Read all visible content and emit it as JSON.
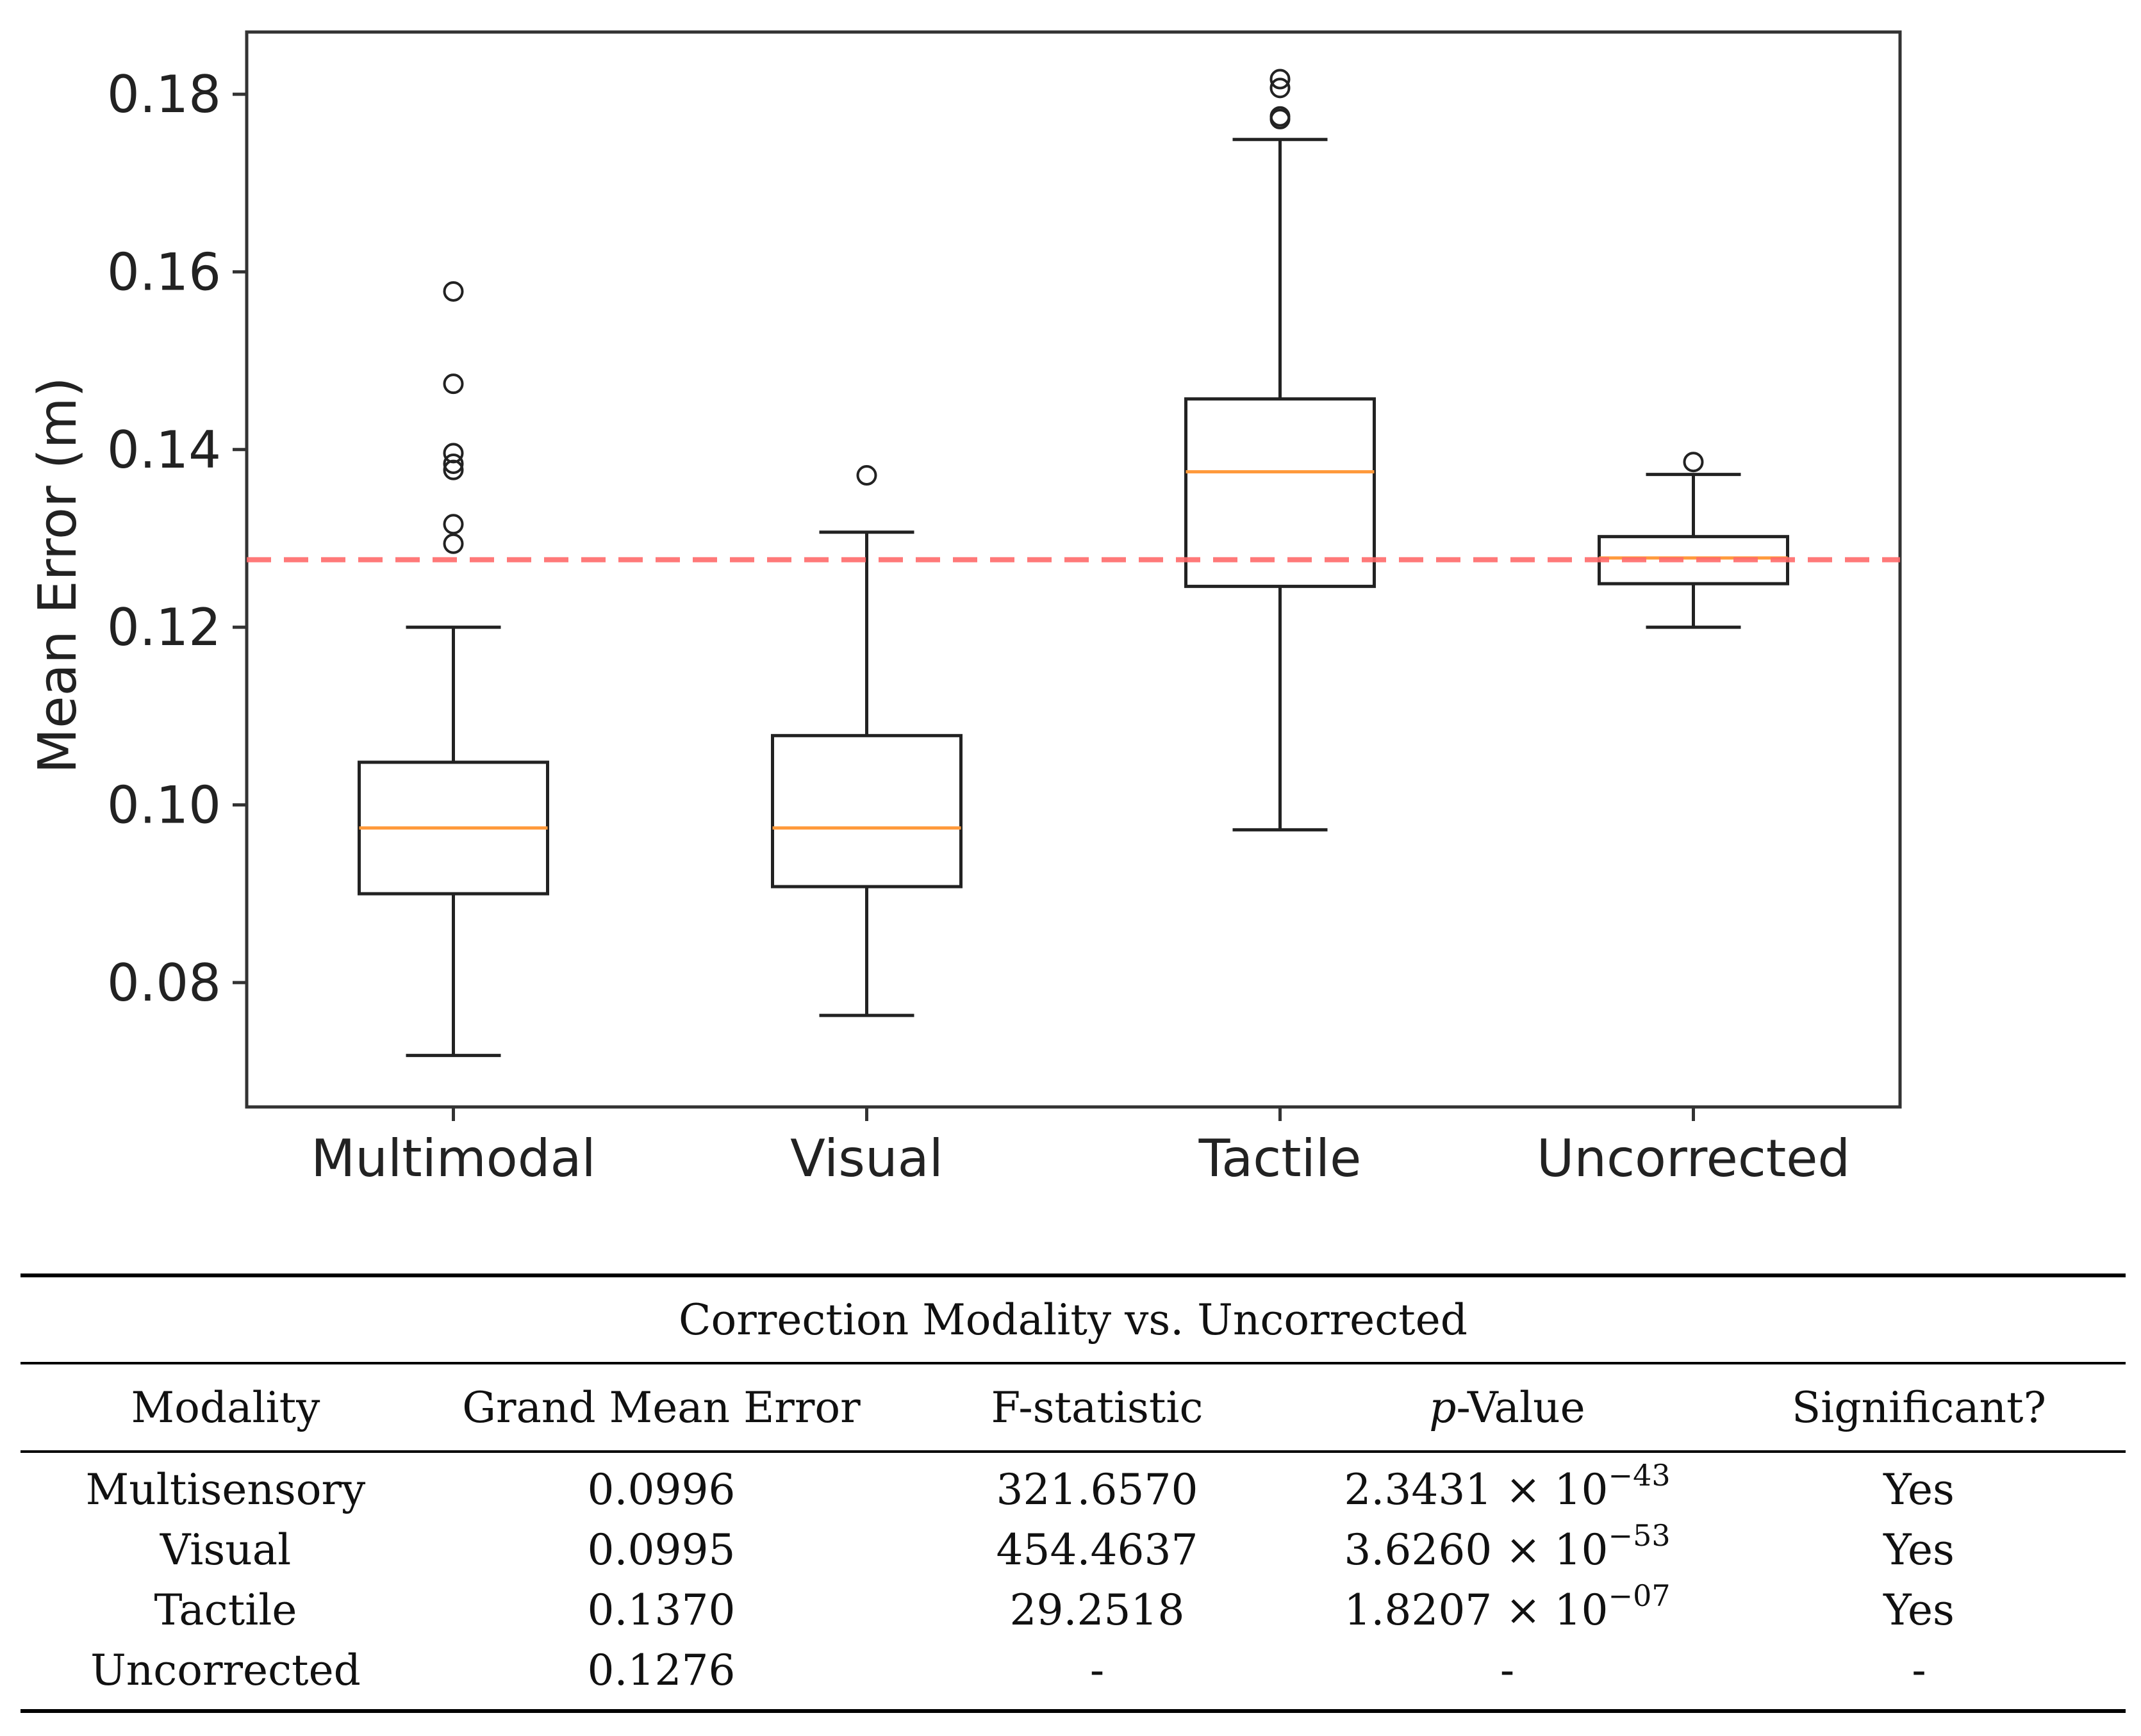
{
  "chart_data": {
    "type": "box",
    "ylabel": "Mean Error (m)",
    "ylim": [
      0.066,
      0.187
    ],
    "yticks": [
      0.08,
      0.1,
      0.12,
      0.14,
      0.16,
      0.18
    ],
    "ytick_labels": [
      "0.08",
      "0.10",
      "0.12",
      "0.14",
      "0.16",
      "0.18"
    ],
    "categories": [
      "Multimodal",
      "Visual",
      "Tactile",
      "Uncorrected"
    ],
    "boxes": [
      {
        "label": "Multimodal",
        "whisker_low": 0.0718,
        "q1": 0.09,
        "median": 0.0974,
        "q3": 0.1048,
        "whisker_high": 0.12,
        "outliers": [
          0.1294,
          0.1316,
          0.1377,
          0.1384,
          0.1396,
          0.1474,
          0.1578
        ]
      },
      {
        "label": "Visual",
        "whisker_low": 0.0763,
        "q1": 0.0908,
        "median": 0.0974,
        "q3": 0.1078,
        "whisker_high": 0.1307,
        "outliers": [
          0.1371
        ]
      },
      {
        "label": "Tactile",
        "whisker_low": 0.0972,
        "q1": 0.1246,
        "median": 0.1375,
        "q3": 0.1457,
        "whisker_high": 0.1749,
        "outliers": [
          0.1772,
          0.1775,
          0.1807,
          0.1817
        ]
      },
      {
        "label": "Uncorrected",
        "whisker_low": 0.12,
        "q1": 0.1249,
        "median": 0.1278,
        "q3": 0.1302,
        "whisker_high": 0.1372,
        "outliers": [
          0.1386
        ]
      }
    ],
    "reference_line": {
      "value": 0.1276,
      "color": "#ff6b6b",
      "style": "dashed"
    },
    "colors": {
      "box": "#222222",
      "median": "#ff9a3c",
      "axis": "#333333"
    }
  },
  "table": {
    "caption": "Correction Modality vs. Uncorrected",
    "headers": {
      "modality": "Modality",
      "grand_mean": "Grand Mean Error",
      "f_stat": "F-statistic",
      "p_italic": "p",
      "p_rest": "-Value",
      "significant": "Significant?"
    },
    "rows": [
      {
        "modality": "Multisensory",
        "grand_mean": "0.0996",
        "f_stat": "321.6570",
        "p_mantissa": "2.3431 × 10",
        "p_exponent": "−43",
        "significant": "Yes"
      },
      {
        "modality": "Visual",
        "grand_mean": "0.0995",
        "f_stat": "454.4637",
        "p_mantissa": "3.6260 × 10",
        "p_exponent": "−53",
        "significant": "Yes"
      },
      {
        "modality": "Tactile",
        "grand_mean": "0.1370",
        "f_stat": "29.2518",
        "p_mantissa": "1.8207 × 10",
        "p_exponent": "−07",
        "significant": "Yes"
      },
      {
        "modality": "Uncorrected",
        "grand_mean": "0.1276",
        "f_stat": "-",
        "p_mantissa": "-",
        "p_exponent": "",
        "significant": "-"
      }
    ]
  }
}
